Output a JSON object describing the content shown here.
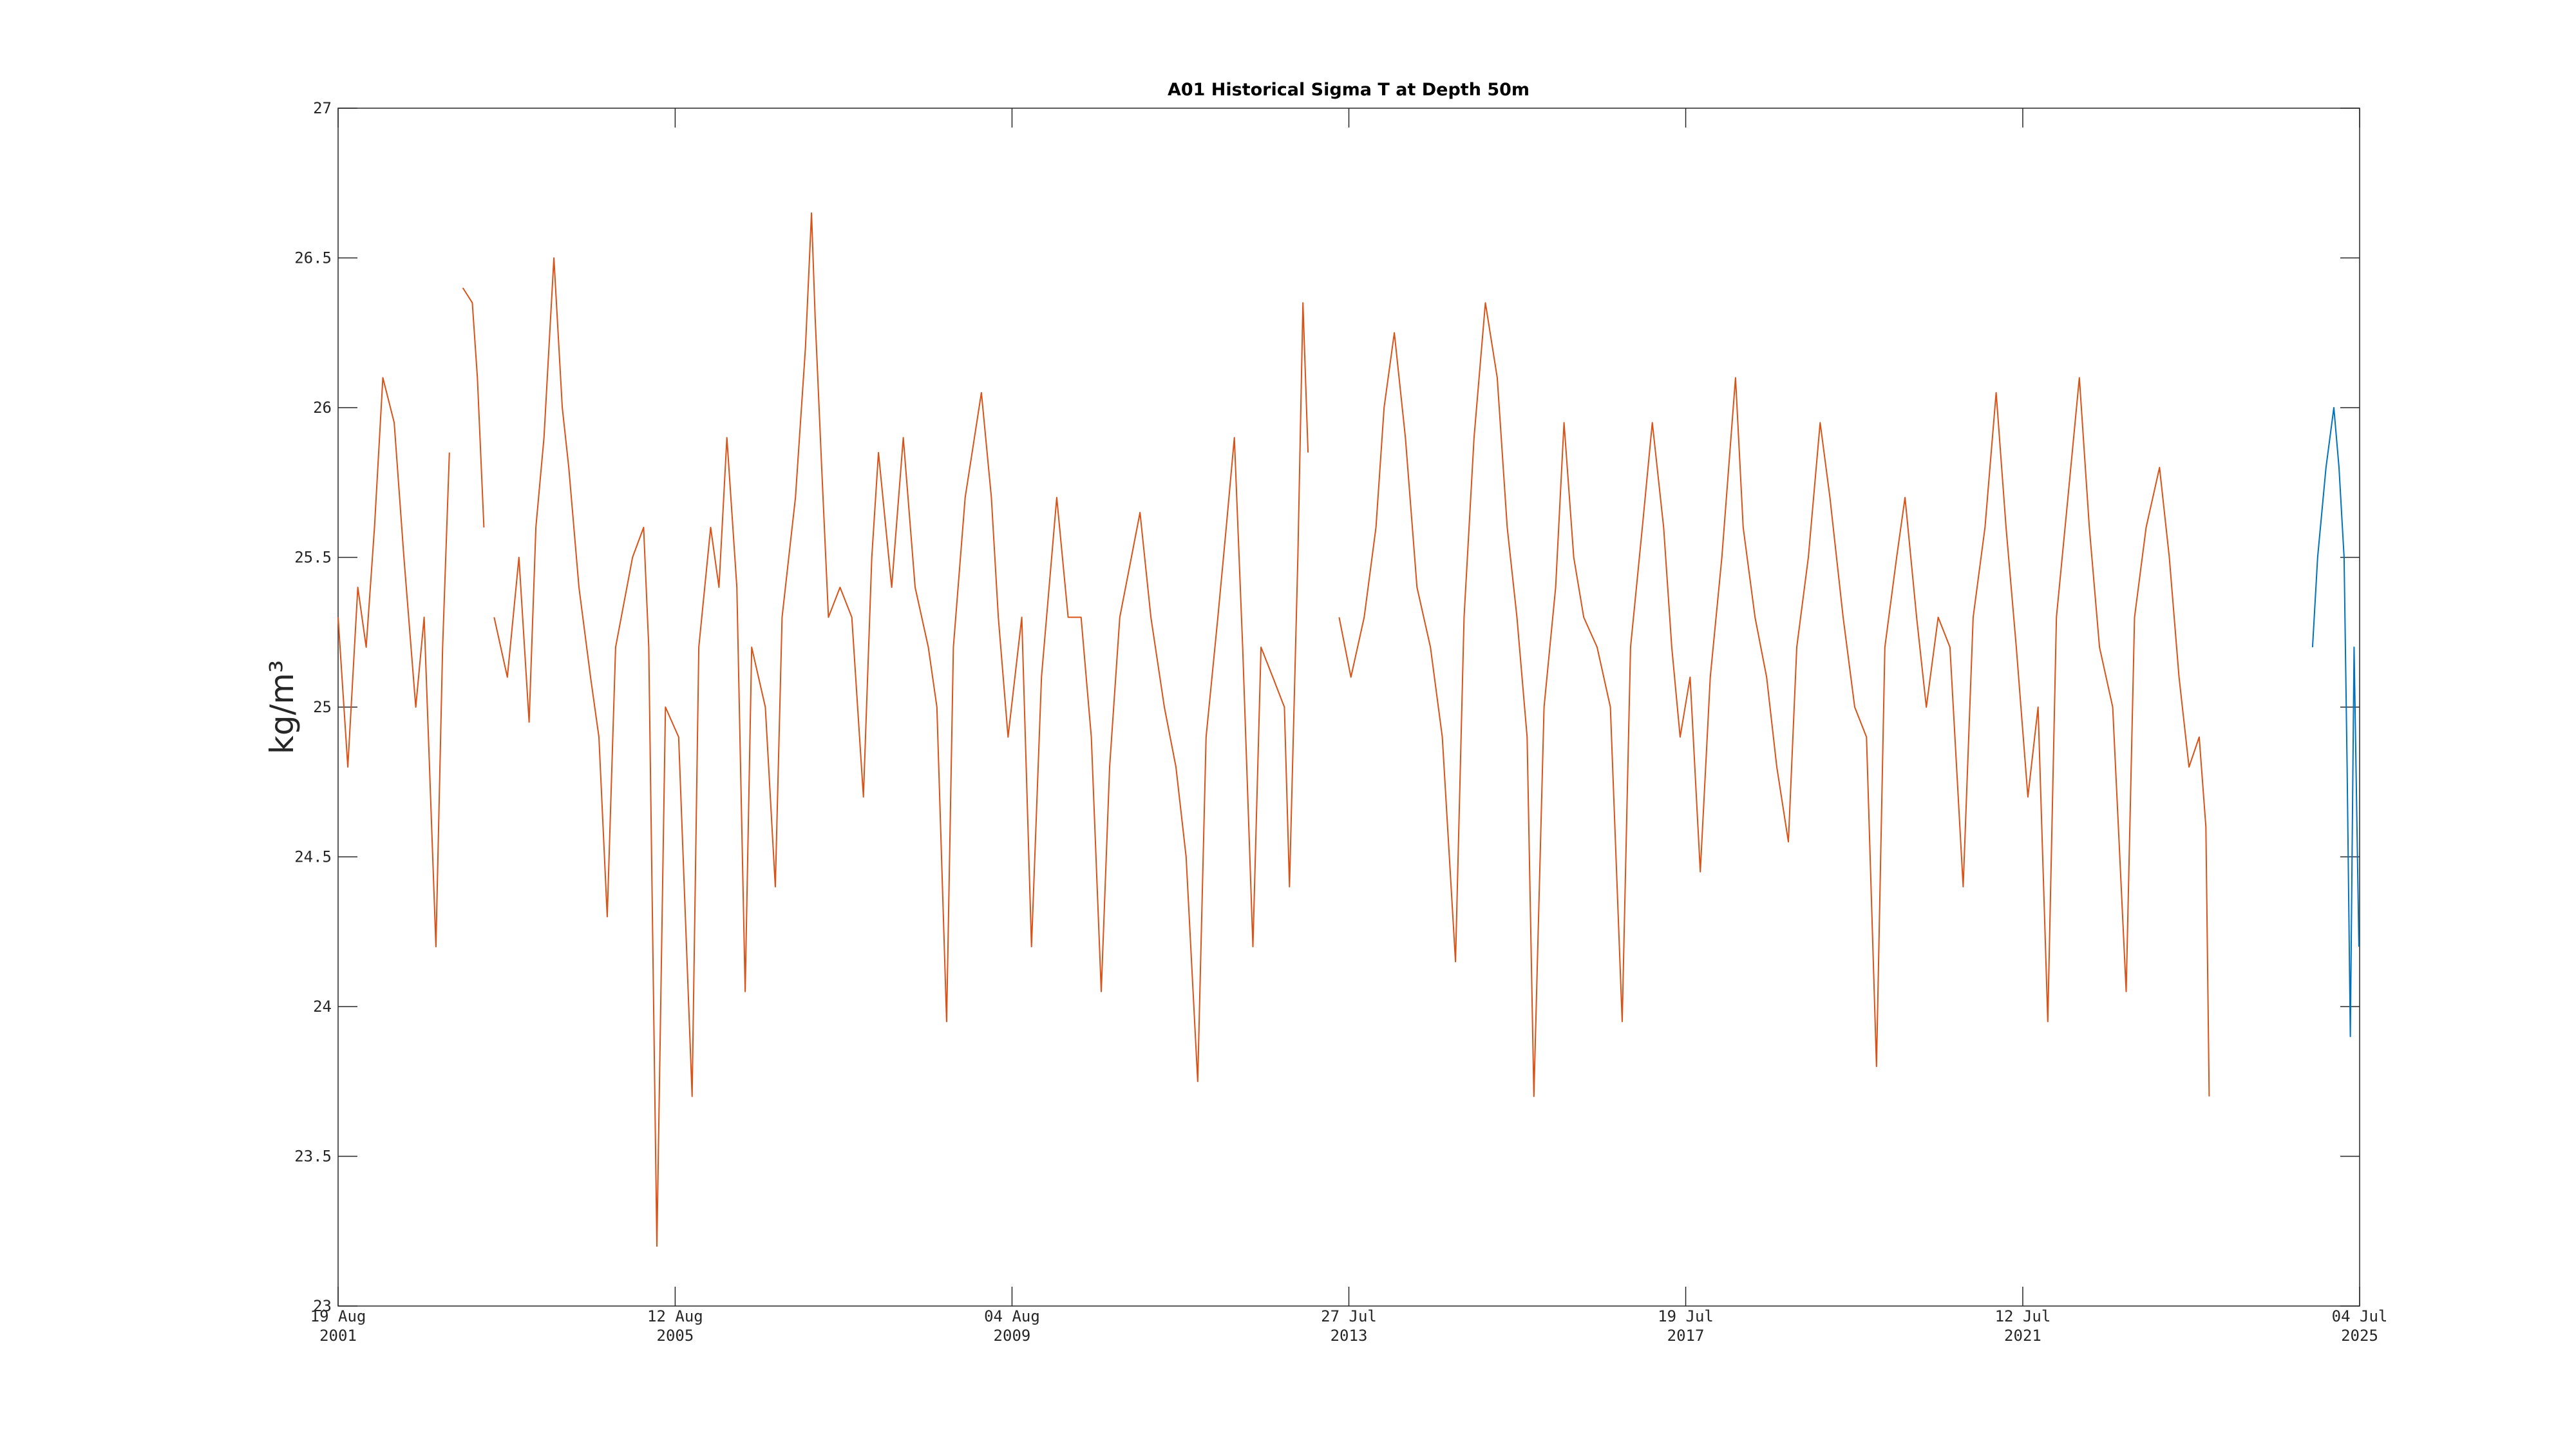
{
  "chart_data": {
    "type": "line",
    "title": "A01 Historical Sigma T at Depth 50m",
    "ylabel": "kg/m³",
    "xlim": [
      "2001-08-19",
      "2025-07-04"
    ],
    "xticks": [
      {
        "value": "2001-08-19",
        "label": [
          "19 Aug",
          "2001"
        ]
      },
      {
        "value": "2005-08-12",
        "label": [
          "12 Aug",
          "2005"
        ]
      },
      {
        "value": "2009-08-04",
        "label": [
          "04 Aug",
          "2009"
        ]
      },
      {
        "value": "2013-07-27",
        "label": [
          "27 Jul",
          "2013"
        ]
      },
      {
        "value": "2017-07-19",
        "label": [
          "19 Jul",
          "2017"
        ]
      },
      {
        "value": "2021-07-12",
        "label": [
          "12 Jul",
          "2021"
        ]
      },
      {
        "value": "2025-07-04",
        "label": [
          "04 Jul",
          "2025"
        ]
      }
    ],
    "ylim": [
      23,
      27
    ],
    "yticks": [
      23,
      23.5,
      24,
      24.5,
      25,
      25.5,
      26,
      26.5,
      27
    ],
    "grid": false,
    "series": [
      {
        "color": "#d95319",
        "x": [
          "2001-08-19",
          "2001-09-30",
          "2001-11-12",
          "2001-12-18",
          "2002-01-23",
          "2002-02-28",
          "2002-04-18",
          "2002-05-30",
          "2002-07-20",
          "2002-08-25",
          "2002-10-15",
          "2002-11-13",
          "2002-12-12",
          "2003-01-10",
          "2003-02-08",
          "2003-03-21",
          "2003-04-12",
          "2003-05-10",
          "2003-05-25",
          "2003-06-23",
          "2003-08-19",
          "2003-10-08",
          "2003-11-21",
          "2003-12-20",
          "2004-01-24",
          "2004-03-07",
          "2004-04-12",
          "2004-05-10",
          "2004-06-23",
          "2004-08-12",
          "2004-09-17",
          "2004-10-23",
          "2004-11-28",
          "2005-02-09",
          "2005-03-29",
          "2005-04-20",
          "2005-05-25",
          "2005-07-01",
          "2005-08-27",
          "2005-10-24",
          "2005-11-22",
          "2006-01-12",
          "2006-02-17",
          "2006-03-23",
          "2006-05-05",
          "2006-06-10",
          "2006-07-08",
          "2006-09-05",
          "2006-10-18",
          "2006-11-16",
          "2007-01-13",
          "2007-02-25",
          "2007-03-23",
          "2007-04-08",
          "2007-05-06",
          "2007-06-04",
          "2007-07-24",
          "2007-09-13",
          "2007-11-02",
          "2007-12-08",
          "2008-01-06",
          "2008-03-03",
          "2008-04-22",
          "2008-06-12",
          "2008-08-08",
          "2008-09-14",
          "2008-10-26",
          "2008-11-24",
          "2009-01-14",
          "2009-03-25",
          "2009-05-07",
          "2009-06-06",
          "2009-07-18",
          "2009-09-15",
          "2009-10-27",
          "2009-12-09",
          "2010-02-13",
          "2010-04-03",
          "2010-05-29",
          "2010-07-12",
          "2010-08-24",
          "2010-09-29",
          "2010-11-12",
          "2011-01-01",
          "2011-02-07",
          "2011-03-26",
          "2011-05-23",
          "2011-07-12",
          "2011-08-25",
          "2011-10-14",
          "2011-11-19",
          "2012-01-09",
          "2012-02-14",
          "2012-03-20",
          "2012-04-25",
          "2012-06-08",
          "2012-07-13",
          "2012-09-02",
          "2012-10-22",
          "2012-11-13",
          "2012-12-19",
          "2013-01-10",
          "2013-02-01",
          "2013-04-01",
          "2013-06-15",
          "2013-08-05",
          "2013-10-01",
          "2013-11-21",
          "2013-12-26",
          "2014-02-08",
          "2014-03-28",
          "2014-05-17",
          "2014-07-14",
          "2014-09-03",
          "2014-10-30",
          "2014-12-06",
          "2015-01-18",
          "2015-03-08",
          "2015-04-28",
          "2015-06-10",
          "2015-07-22",
          "2015-09-04",
          "2015-10-03",
          "2015-11-16",
          "2016-01-05",
          "2016-02-10",
          "2016-03-23",
          "2016-05-05",
          "2016-07-02",
          "2016-08-28",
          "2016-10-18",
          "2016-11-23",
          "2017-01-13",
          "2017-02-25",
          "2017-04-15",
          "2017-05-20",
          "2017-06-25",
          "2017-08-07",
          "2017-09-20",
          "2017-11-02",
          "2017-12-22",
          "2018-02-19",
          "2018-03-24",
          "2018-05-14",
          "2018-07-03",
          "2018-08-16",
          "2018-10-05",
          "2018-11-10",
          "2018-12-30",
          "2019-02-19",
          "2019-04-02",
          "2019-05-29",
          "2019-07-18",
          "2019-09-07",
          "2019-10-20",
          "2019-11-25",
          "2020-01-15",
          "2020-02-20",
          "2020-04-10",
          "2020-05-22",
          "2020-07-12",
          "2020-09-01",
          "2020-10-28",
          "2020-12-10",
          "2021-01-30",
          "2021-03-19",
          "2021-05-01",
          "2021-06-14",
          "2021-08-03",
          "2021-09-16",
          "2021-10-28",
          "2021-12-04",
          "2022-01-23",
          "2022-03-13",
          "2022-04-25",
          "2022-06-08",
          "2022-08-04",
          "2022-10-01",
          "2022-11-06",
          "2022-12-26",
          "2023-02-22",
          "2023-04-05",
          "2023-05-17",
          "2023-06-29",
          "2023-08-12",
          "2023-09-10",
          "2023-09-24"
        ],
        "values": [
          25.3,
          24.8,
          25.4,
          25.2,
          25.6,
          26.1,
          25.95,
          25.5,
          25.0,
          25.3,
          24.2,
          25.2,
          25.85,
          null,
          26.4,
          26.35,
          26.1,
          25.6,
          null,
          25.3,
          25.1,
          25.5,
          24.95,
          25.6,
          25.9,
          26.5,
          26.0,
          25.8,
          25.4,
          25.1,
          24.9,
          24.3,
          25.2,
          25.5,
          25.6,
          25.2,
          23.2,
          25.0,
          24.9,
          23.7,
          25.2,
          25.6,
          25.4,
          25.9,
          25.4,
          24.05,
          25.2,
          25.0,
          24.4,
          25.3,
          25.7,
          26.2,
          26.65,
          26.3,
          25.8,
          25.3,
          25.4,
          25.3,
          24.7,
          25.5,
          25.85,
          25.4,
          25.9,
          25.4,
          25.2,
          25.0,
          23.95,
          25.2,
          25.7,
          26.05,
          25.7,
          25.3,
          24.9,
          25.3,
          24.2,
          25.1,
          25.7,
          25.3,
          25.3,
          24.9,
          24.05,
          24.8,
          25.3,
          25.5,
          25.65,
          25.3,
          25.0,
          24.8,
          24.5,
          23.75,
          24.9,
          25.3,
          25.6,
          25.9,
          25.2,
          24.2,
          25.2,
          25.1,
          25.0,
          24.4,
          25.5,
          26.35,
          25.85,
          null,
          25.3,
          25.1,
          25.3,
          25.6,
          26.0,
          26.25,
          25.9,
          25.4,
          25.2,
          24.9,
          24.15,
          25.3,
          25.9,
          26.35,
          26.1,
          25.6,
          25.3,
          24.9,
          23.7,
          25.0,
          25.4,
          25.95,
          25.5,
          25.3,
          25.2,
          25.0,
          23.95,
          25.2,
          25.6,
          25.95,
          25.6,
          25.2,
          24.9,
          25.1,
          24.45,
          25.1,
          25.5,
          26.1,
          25.6,
          25.3,
          25.1,
          24.8,
          24.55,
          25.2,
          25.5,
          25.95,
          25.7,
          25.3,
          25.0,
          24.9,
          23.8,
          25.2,
          25.5,
          25.7,
          25.3,
          25.0,
          25.3,
          25.2,
          24.4,
          25.3,
          25.6,
          26.05,
          25.6,
          25.2,
          24.7,
          25.0,
          23.95,
          25.3,
          25.7,
          26.1,
          25.6,
          25.2,
          25.0,
          24.05,
          25.3,
          25.6,
          25.8,
          25.5,
          25.1,
          24.8,
          24.9,
          24.6,
          23.7
        ]
      },
      {
        "color": "#0072bd",
        "x": [
          "2024-12-13",
          "2025-01-04",
          "2025-02-09",
          "2025-03-15",
          "2025-04-06",
          "2025-04-28",
          "2025-05-11",
          "2025-05-25",
          "2025-06-10",
          "2025-07-01"
        ],
        "values": [
          25.2,
          25.5,
          25.8,
          26.0,
          25.8,
          25.5,
          24.8,
          23.9,
          25.2,
          24.2
        ]
      }
    ]
  }
}
